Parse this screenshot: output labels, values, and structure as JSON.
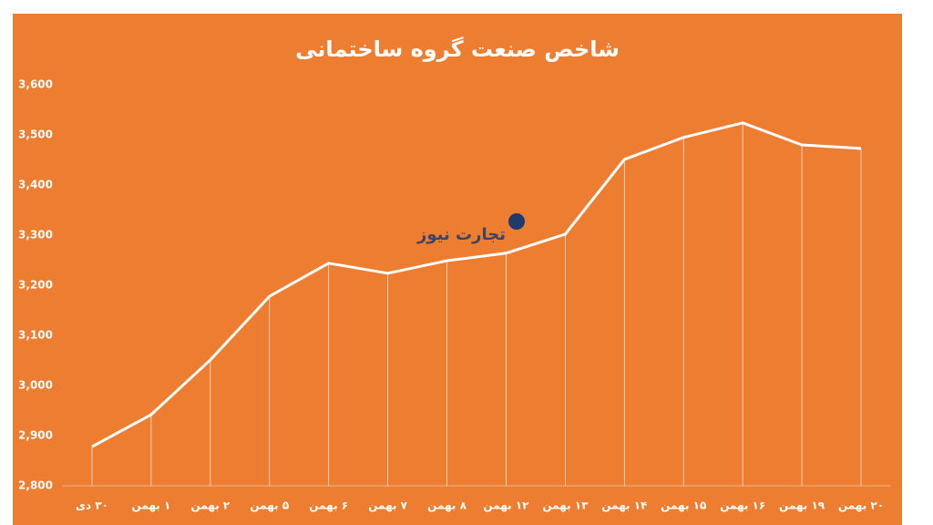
{
  "chart_data": {
    "type": "line",
    "title": "شاخص صنعت گروه ساختمانی",
    "watermark": "تجارت نیوز",
    "categories": [
      "۳۰ دی",
      "۱ بهمن",
      "۲ بهمن",
      "۵ بهمن",
      "۶ بهمن",
      "۷ بهمن",
      "۸ بهمن",
      "۱۲ بهمن",
      "۱۳ بهمن",
      "۱۴ بهمن",
      "۱۵ بهمن",
      "۱۶ بهمن",
      "۱۹ بهمن",
      "۲۰ بهمن"
    ],
    "values": [
      2878,
      2942,
      3051,
      3178,
      3244,
      3224,
      3249,
      3264,
      3302,
      3451,
      3495,
      3524,
      3480,
      3473
    ],
    "color": "#ffffff",
    "drop_lines": true,
    "ylim": [
      2800,
      3600
    ],
    "yticks": [
      {
        "value": 2800,
        "label": "2,800"
      },
      {
        "value": 2900,
        "label": "2,900"
      },
      {
        "value": 3000,
        "label": "3,000"
      },
      {
        "value": 3100,
        "label": "3,100"
      },
      {
        "value": 3200,
        "label": "3,200"
      },
      {
        "value": 3300,
        "label": "3,300"
      },
      {
        "value": 3400,
        "label": "3,400"
      },
      {
        "value": 3500,
        "label": "3,500"
      },
      {
        "value": 3600,
        "label": "3,600"
      }
    ]
  }
}
